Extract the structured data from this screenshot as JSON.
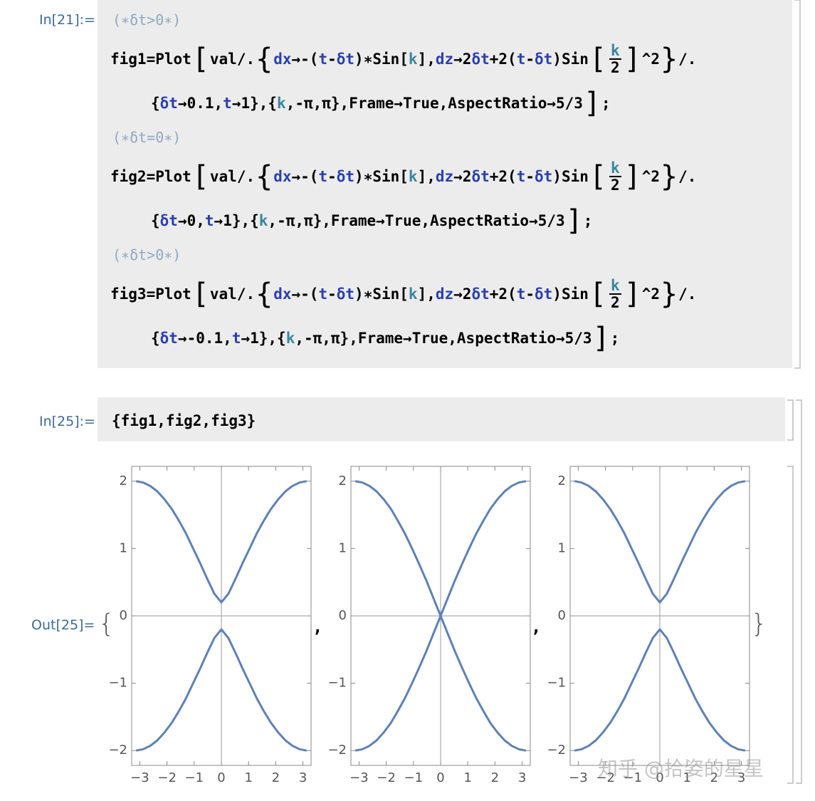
{
  "cells": {
    "in21": {
      "label": "In[21]:=",
      "blocks": [
        {
          "comment": "(∗δt>0∗)",
          "lines": [
            [
              "fig1=Plot",
              "[",
              "val/.",
              "{",
              "dx",
              "→-(",
              "t",
              "-",
              "δt",
              ")∗Sin[",
              "k",
              "],",
              "dz",
              "→2",
              "δt",
              "+2(",
              "t",
              "-",
              "δt",
              ")Sin",
              "[",
              "k",
              "2",
              "]",
              "^2",
              "}",
              "/."
            ],
            [
              "{",
              "δt",
              "→0.1,",
              "t",
              "→1},{",
              "k",
              ",-π,π},Frame→True,AspectRatio→5/3",
              "]",
              ";"
            ]
          ]
        },
        {
          "comment": "(∗δt=0∗)",
          "lines": [
            [
              "fig2=Plot",
              "[",
              "val/.",
              "{",
              "dx",
              "→-(",
              "t",
              "-",
              "δt",
              ")∗Sin[",
              "k",
              "],",
              "dz",
              "→2",
              "δt",
              "+2(",
              "t",
              "-",
              "δt",
              ")Sin",
              "[",
              "k",
              "2",
              "]",
              "^2",
              "}",
              "/."
            ],
            [
              "{",
              "δt",
              "→0,",
              "t",
              "→1},{",
              "k",
              ",-π,π},Frame→True,AspectRatio→5/3",
              "]",
              ";"
            ]
          ]
        },
        {
          "comment": "(∗δt>0∗)",
          "lines": [
            [
              "fig3=Plot",
              "[",
              "val/.",
              "{",
              "dx",
              "→-(",
              "t",
              "-",
              "δt",
              ")∗Sin[",
              "k",
              "],",
              "dz",
              "→2",
              "δt",
              "+2(",
              "t",
              "-",
              "δt",
              ")Sin",
              "[",
              "k",
              "2",
              "]",
              "^2",
              "}",
              "/."
            ],
            [
              "{",
              "δt",
              "→-0.1,",
              "t",
              "→1},{",
              "k",
              ",-π,π},Frame→True,AspectRatio→5/3",
              "]",
              ";"
            ]
          ]
        }
      ]
    },
    "in25": {
      "label": "In[25]:=",
      "code": "{fig1,fig2,fig3}"
    },
    "out25": {
      "label": "Out[25]=",
      "open": "{",
      "separator": ",",
      "close": "}"
    }
  },
  "watermark": "知乎 @拾姿的星星",
  "chart_data": [
    {
      "type": "line",
      "x": [
        -3.14,
        -2.88,
        -2.62,
        -2.36,
        -2.09,
        -1.83,
        -1.57,
        -1.31,
        -1.05,
        -0.79,
        -0.52,
        -0.26,
        0,
        0.26,
        0.52,
        0.79,
        1.05,
        1.31,
        1.57,
        1.83,
        2.09,
        2.36,
        2.62,
        2.88,
        3.14
      ],
      "series": [
        {
          "color": "#5e81b5",
          "values": [
            2,
            1.98,
            1.93,
            1.85,
            1.73,
            1.59,
            1.42,
            1.23,
            1.01,
            0.79,
            0.55,
            0.33,
            0.2,
            0.33,
            0.55,
            0.79,
            1.01,
            1.23,
            1.42,
            1.59,
            1.73,
            1.85,
            1.93,
            1.98,
            2
          ]
        },
        {
          "color": "#5e81b5",
          "values": [
            -2,
            -1.98,
            -1.93,
            -1.85,
            -1.73,
            -1.59,
            -1.42,
            -1.23,
            -1.01,
            -0.79,
            -0.55,
            -0.33,
            -0.2,
            -0.33,
            -0.55,
            -0.79,
            -1.01,
            -1.23,
            -1.42,
            -1.59,
            -1.73,
            -1.85,
            -1.93,
            -1.98,
            -2
          ]
        }
      ],
      "xlim": [
        -3.3,
        3.3
      ],
      "ylim": [
        -2.22,
        2.22
      ],
      "xticks": [
        {
          "value": -3,
          "label": "−3"
        },
        {
          "value": -2,
          "label": "−2"
        },
        {
          "value": -1,
          "label": "−1"
        },
        0,
        1,
        2,
        3
      ],
      "yticks": [
        {
          "value": -2,
          "label": "−2"
        },
        {
          "value": -1,
          "label": "−1"
        },
        0,
        1,
        2
      ],
      "frame": true
    },
    {
      "type": "line",
      "x": [
        -3.14,
        -2.88,
        -2.62,
        -2.36,
        -2.09,
        -1.83,
        -1.57,
        -1.31,
        -1.05,
        -0.79,
        -0.52,
        -0.26,
        0,
        0.26,
        0.52,
        0.79,
        1.05,
        1.31,
        1.57,
        1.83,
        2.09,
        2.36,
        2.62,
        2.88,
        3.14
      ],
      "series": [
        {
          "color": "#5e81b5",
          "values": [
            2,
            1.98,
            1.93,
            1.85,
            1.73,
            1.59,
            1.41,
            1.22,
            1,
            0.77,
            0.52,
            0.26,
            0,
            0.26,
            0.52,
            0.77,
            1,
            1.22,
            1.41,
            1.59,
            1.73,
            1.85,
            1.93,
            1.98,
            2
          ]
        },
        {
          "color": "#5e81b5",
          "values": [
            -2,
            -1.98,
            -1.93,
            -1.85,
            -1.73,
            -1.59,
            -1.41,
            -1.22,
            -1,
            -0.77,
            -0.52,
            -0.26,
            0,
            -0.26,
            -0.52,
            -0.77,
            -1,
            -1.22,
            -1.41,
            -1.59,
            -1.73,
            -1.85,
            -1.93,
            -1.98,
            -2
          ]
        }
      ],
      "xlim": [
        -3.3,
        3.3
      ],
      "ylim": [
        -2.22,
        2.22
      ],
      "xticks": [
        {
          "value": -3,
          "label": "−3"
        },
        {
          "value": -2,
          "label": "−2"
        },
        {
          "value": -1,
          "label": "−1"
        },
        0,
        1,
        2,
        3
      ],
      "yticks": [
        {
          "value": -2,
          "label": "−2"
        },
        {
          "value": -1,
          "label": "−1"
        },
        0,
        1,
        2
      ],
      "frame": true
    },
    {
      "type": "line",
      "x": [
        -3.14,
        -2.88,
        -2.62,
        -2.36,
        -2.09,
        -1.83,
        -1.57,
        -1.31,
        -1.05,
        -0.79,
        -0.52,
        -0.26,
        0,
        0.26,
        0.52,
        0.79,
        1.05,
        1.31,
        1.57,
        1.83,
        2.09,
        2.36,
        2.62,
        2.88,
        3.14
      ],
      "series": [
        {
          "color": "#5e81b5",
          "values": [
            2,
            1.98,
            1.93,
            1.85,
            1.73,
            1.59,
            1.42,
            1.23,
            1.01,
            0.79,
            0.55,
            0.33,
            0.2,
            0.33,
            0.55,
            0.79,
            1.01,
            1.23,
            1.42,
            1.59,
            1.73,
            1.85,
            1.93,
            1.98,
            2
          ]
        },
        {
          "color": "#5e81b5",
          "values": [
            -2,
            -1.98,
            -1.93,
            -1.85,
            -1.73,
            -1.59,
            -1.42,
            -1.23,
            -1.01,
            -0.79,
            -0.55,
            -0.33,
            -0.2,
            -0.33,
            -0.55,
            -0.79,
            -1.01,
            -1.23,
            -1.42,
            -1.59,
            -1.73,
            -1.85,
            -1.93,
            -1.98,
            -2
          ]
        }
      ],
      "xlim": [
        -3.3,
        3.3
      ],
      "ylim": [
        -2.22,
        2.22
      ],
      "xticks": [
        {
          "value": -3,
          "label": "−3"
        },
        {
          "value": -2,
          "label": "−2"
        },
        {
          "value": -1,
          "label": "−1"
        },
        0,
        1,
        2,
        3
      ],
      "yticks": [
        {
          "value": -2,
          "label": "−2"
        },
        {
          "value": -1,
          "label": "−1"
        },
        0,
        1,
        2
      ],
      "frame": true
    }
  ]
}
